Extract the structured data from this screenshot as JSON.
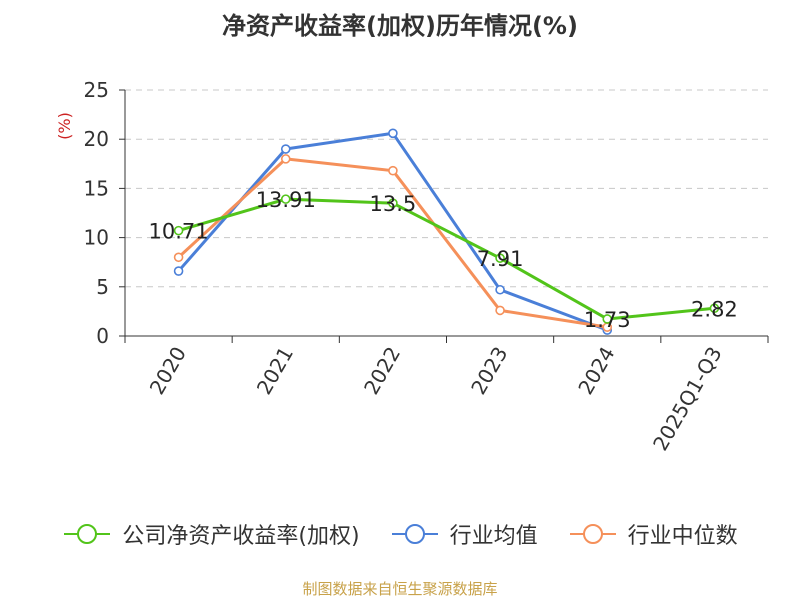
{
  "chart_data": {
    "type": "line",
    "title": "净资产收益率(加权)历年情况(%)",
    "ylabel": "(%)",
    "xlabel": "",
    "ylim": [
      0,
      25
    ],
    "yticks": [
      0,
      5,
      10,
      15,
      20,
      25
    ],
    "grid": true,
    "legend_position": "bottom",
    "categories": [
      "2020",
      "2021",
      "2022",
      "2023",
      "2024",
      "2025Q1-Q3"
    ],
    "series": [
      {
        "name": "公司净资产收益率(加权)",
        "color": "#52c41a",
        "values": [
          10.71,
          13.91,
          13.5,
          7.91,
          1.73,
          2.82
        ],
        "labels": [
          "10.71",
          "13.91",
          "13.5",
          "7.91",
          "1.73",
          "2.82"
        ]
      },
      {
        "name": "行业均值",
        "color": "#4a7fd8",
        "values": [
          6.6,
          19.0,
          20.6,
          4.7,
          0.6,
          null
        ]
      },
      {
        "name": "行业中位数",
        "color": "#f5905a",
        "values": [
          8.0,
          18.0,
          16.8,
          2.6,
          0.9,
          null
        ]
      }
    ]
  },
  "source": "制图数据来自恒生聚源数据库"
}
